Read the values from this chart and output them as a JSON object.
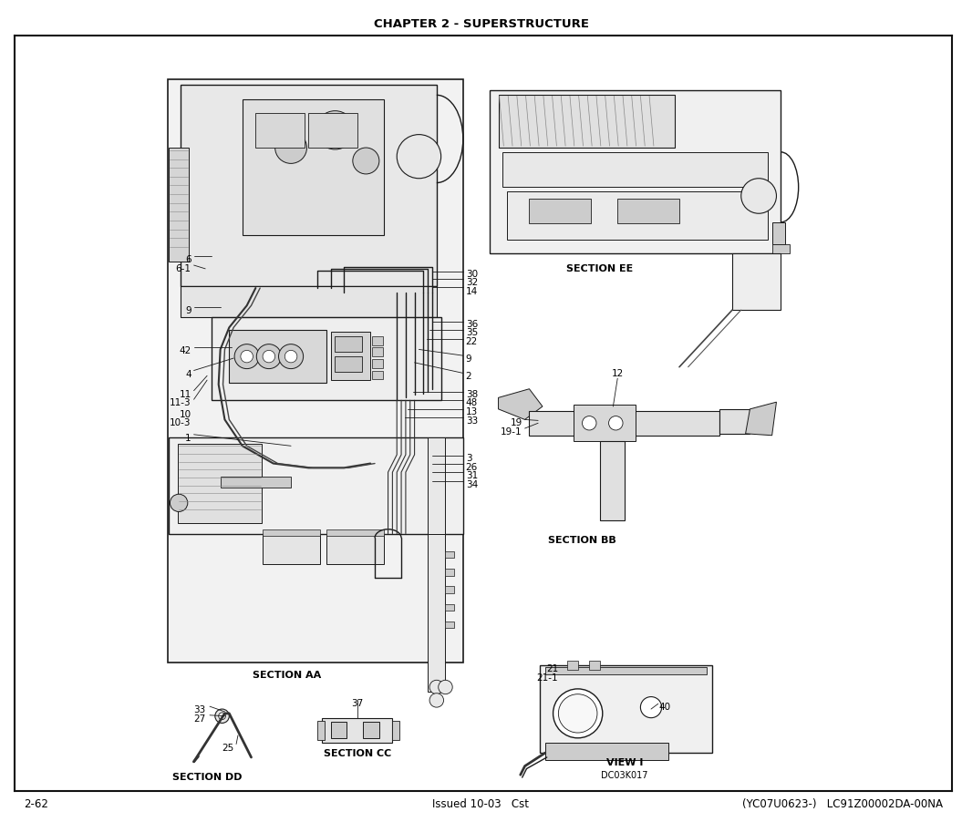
{
  "title": "CHAPTER 2 - SUPERSTRUCTURE",
  "page_number": "2-62",
  "footer_center": "Issued 10-03   Cst",
  "footer_right": "(YC07U0623-)   LC91Z00002DA-00NA",
  "diagram_code": "DC03K017",
  "bg": "#ffffff",
  "gray_light": "#e8e8e8",
  "gray_med": "#cccccc",
  "gray_dark": "#888888",
  "line_color": "#1a1a1a",
  "text_color": "#000000",
  "title_fontsize": 9.5,
  "footer_fontsize": 8.5,
  "label_fontsize": 7.5,
  "section_fontsize": 8.0
}
